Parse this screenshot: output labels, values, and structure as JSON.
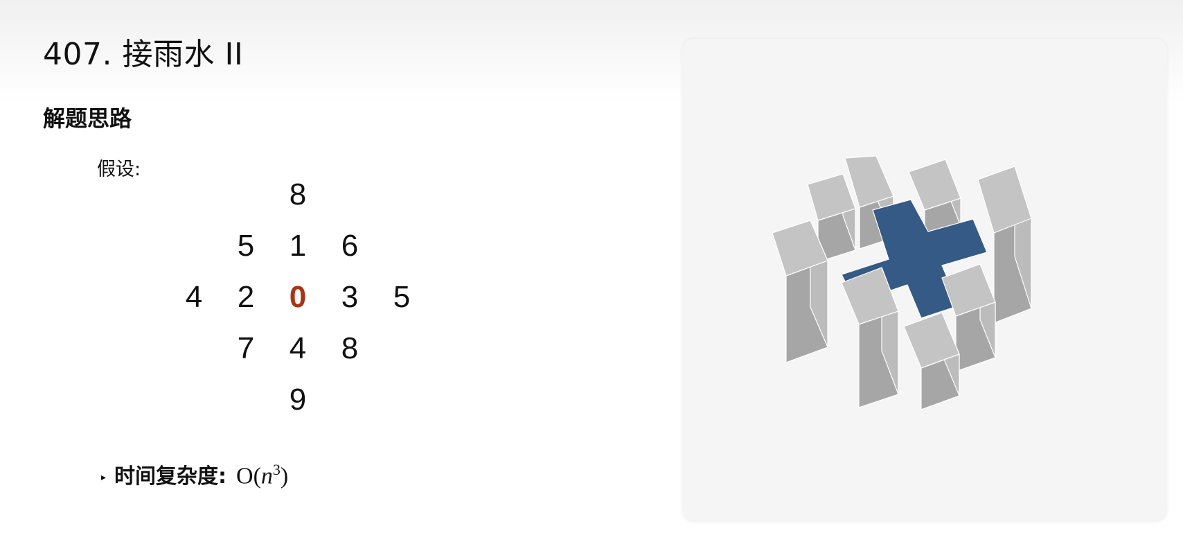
{
  "title": "407. 接雨水 II",
  "section_heading": "解题思路",
  "assumption_label": "假设:",
  "height_grid": {
    "rows": [
      [
        "",
        "",
        "8",
        "",
        ""
      ],
      [
        "",
        "5",
        "1",
        "6",
        ""
      ],
      [
        "4",
        "2",
        "0",
        "3",
        "5"
      ],
      [
        "",
        "7",
        "4",
        "8",
        ""
      ],
      [
        "",
        "",
        "9",
        "",
        ""
      ]
    ],
    "highlighted_cell": "0"
  },
  "complexity": {
    "label": "时间复杂度:",
    "formula_base": "O(",
    "formula_var": "n",
    "formula_exp": "3",
    "formula_close": ")"
  },
  "visualization": {
    "pillar_top_color": "#c4c4c4",
    "pillar_left_color": "#a6a6a6",
    "pillar_right_color": "#bcbcbc",
    "water_color": "#365a86",
    "panel_color": "#f5f5f5"
  }
}
